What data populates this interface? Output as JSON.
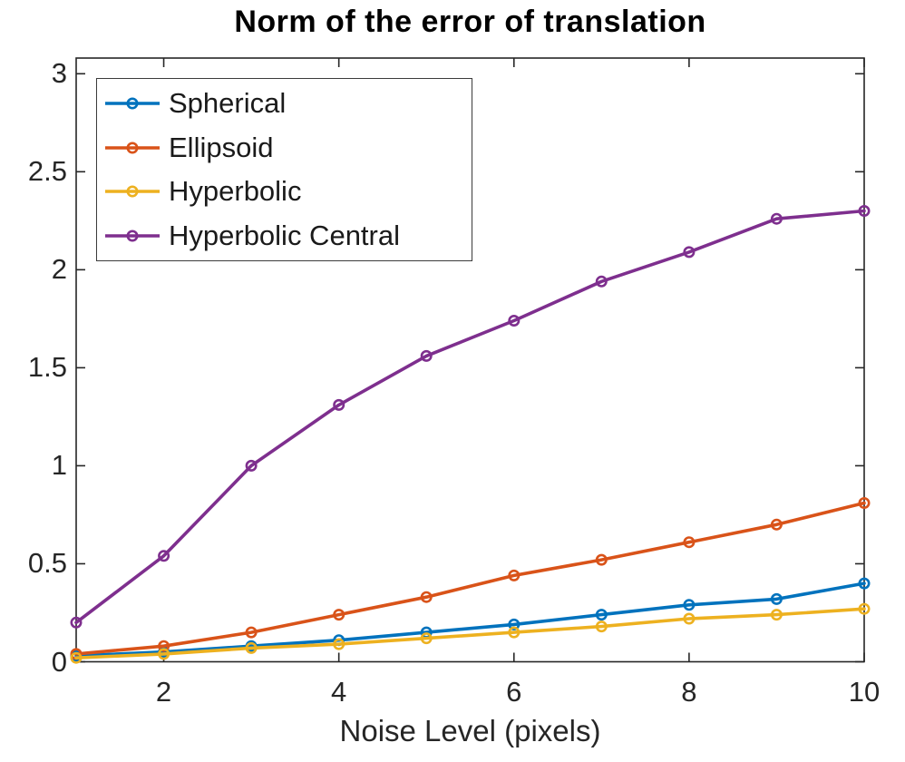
{
  "chart_data": {
    "type": "line",
    "title": "Norm of the error of translation",
    "xlabel": "Noise Level (pixels)",
    "ylabel": "",
    "x": [
      1,
      2,
      3,
      4,
      5,
      6,
      7,
      8,
      9,
      10
    ],
    "xlim": [
      1,
      10
    ],
    "ylim": [
      0,
      3.08
    ],
    "xticks": [
      2,
      4,
      6,
      8,
      10
    ],
    "xtick_labels": [
      "2",
      "4",
      "6",
      "8",
      "10"
    ],
    "yticks": [
      0,
      0.5,
      1,
      1.5,
      2,
      2.5,
      3
    ],
    "ytick_labels": [
      "0",
      "0.5",
      "1",
      "1.5",
      "2",
      "2.5",
      "3"
    ],
    "grid": false,
    "legend_position": "top-left",
    "marker": "o",
    "axis_color": "#262626",
    "background": "#ffffff",
    "series": [
      {
        "name": "Spherical",
        "color": "#0072BD",
        "values": [
          0.03,
          0.05,
          0.08,
          0.11,
          0.15,
          0.19,
          0.24,
          0.29,
          0.32,
          0.4
        ]
      },
      {
        "name": "Ellipsoid",
        "color": "#D95319",
        "values": [
          0.04,
          0.08,
          0.15,
          0.24,
          0.33,
          0.44,
          0.52,
          0.61,
          0.7,
          0.81
        ]
      },
      {
        "name": "Hyperbolic",
        "color": "#EDB120",
        "values": [
          0.02,
          0.04,
          0.07,
          0.09,
          0.12,
          0.15,
          0.18,
          0.22,
          0.24,
          0.27
        ]
      },
      {
        "name": "Hyperbolic Central",
        "color": "#7E2F8E",
        "values": [
          0.2,
          0.54,
          1.0,
          1.31,
          1.56,
          1.74,
          1.94,
          2.09,
          2.26,
          2.3
        ]
      }
    ]
  }
}
